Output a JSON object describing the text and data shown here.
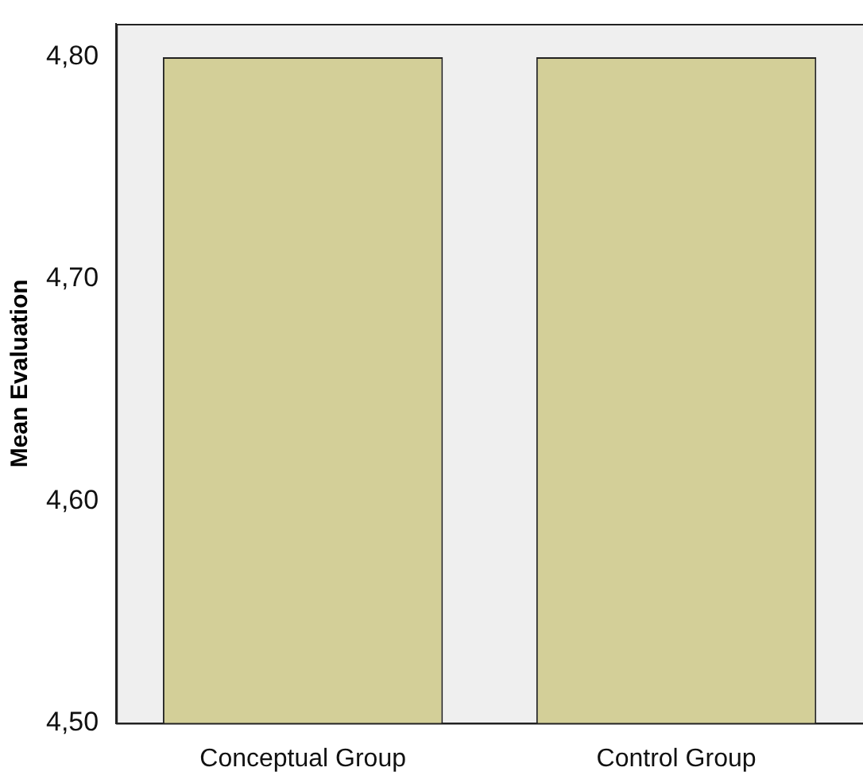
{
  "chart_data": {
    "type": "bar",
    "ylabel": "Mean Evaluation",
    "categories": [
      "Conceptual Group",
      "Control Group"
    ],
    "values": [
      4.8,
      4.8
    ],
    "color": "#d3cf98",
    "ylim": [
      4.5,
      4.815
    ],
    "yticks": [
      {
        "value": 4.5,
        "label": "4,50"
      },
      {
        "value": 4.6,
        "label": "4,60"
      },
      {
        "value": 4.7,
        "label": "4,70"
      },
      {
        "value": 4.8,
        "label": "4,80"
      }
    ],
    "grid": false,
    "legend": false
  }
}
